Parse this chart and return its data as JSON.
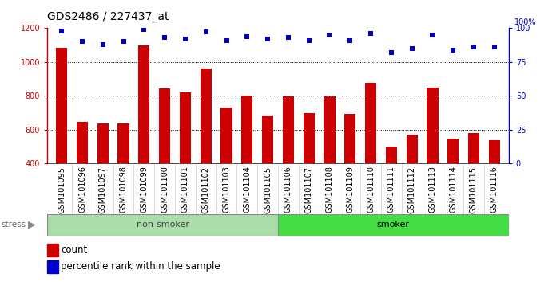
{
  "title": "GDS2486 / 227437_at",
  "categories": [
    "GSM101095",
    "GSM101096",
    "GSM101097",
    "GSM101098",
    "GSM101099",
    "GSM101100",
    "GSM101101",
    "GSM101102",
    "GSM101103",
    "GSM101104",
    "GSM101105",
    "GSM101106",
    "GSM101107",
    "GSM101108",
    "GSM101109",
    "GSM101110",
    "GSM101111",
    "GSM101112",
    "GSM101113",
    "GSM101114",
    "GSM101115",
    "GSM101116"
  ],
  "bar_values": [
    1085,
    645,
    635,
    638,
    1098,
    845,
    822,
    963,
    733,
    803,
    685,
    797,
    697,
    797,
    693,
    879,
    500,
    572,
    849,
    547,
    579,
    537
  ],
  "percentile_values": [
    98,
    90,
    88,
    90,
    99,
    93,
    92,
    97,
    91,
    94,
    92,
    93,
    91,
    95,
    91,
    96,
    82,
    85,
    95,
    84,
    86,
    86
  ],
  "bar_color": "#cc0000",
  "percentile_color": "#0000cc",
  "ylim_left": [
    400,
    1200
  ],
  "ylim_right": [
    0,
    100
  ],
  "yticks_left": [
    400,
    600,
    800,
    1000,
    1200
  ],
  "yticks_right": [
    0,
    25,
    50,
    75,
    100
  ],
  "grid_values": [
    600,
    800,
    1000
  ],
  "non_smoker_count": 11,
  "smoker_count": 11,
  "non_smoker_color": "#aaddaa",
  "smoker_color": "#44dd44",
  "stress_label": "stress",
  "legend_count_label": "count",
  "legend_pct_label": "percentile rank within the sample",
  "plot_bg_color": "#ffffff",
  "title_fontsize": 10,
  "tick_fontsize": 7,
  "group_label_fontsize": 8
}
